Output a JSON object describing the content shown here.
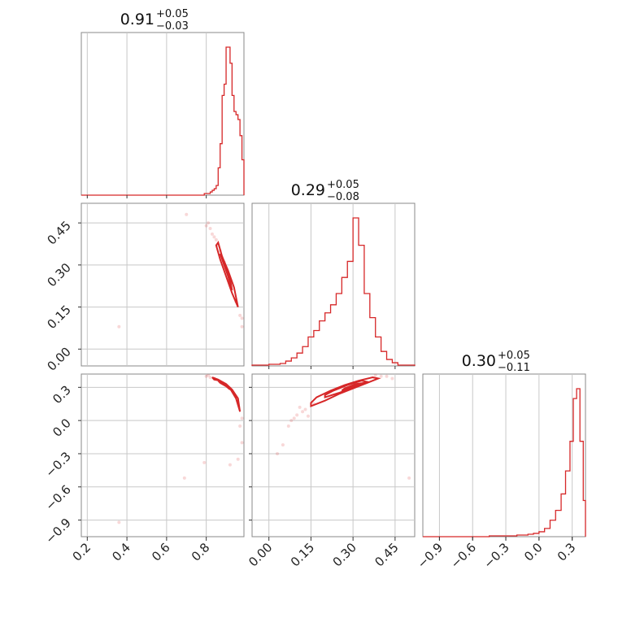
{
  "chart_data": {
    "type": "corner",
    "color": "#d62728",
    "title": "",
    "parameters": [
      {
        "key": "p1",
        "range": [
          0.17,
          0.99
        ],
        "ticks": [
          0.2,
          0.4,
          0.6,
          0.8
        ],
        "tick_labels": [
          "0.2",
          "0.4",
          "0.6",
          "0.8"
        ],
        "title": {
          "median": "0.91",
          "upper": "+0.05",
          "lower": "−0.03"
        }
      },
      {
        "key": "p2",
        "range": [
          -0.06,
          0.52
        ],
        "ticks": [
          0.0,
          0.15,
          0.3,
          0.45
        ],
        "tick_labels": [
          "0.00",
          "0.15",
          "0.30",
          "0.45"
        ],
        "title": {
          "median": "0.29",
          "upper": "+0.05",
          "lower": "−0.08"
        }
      },
      {
        "key": "p3",
        "range": [
          -1.05,
          0.42
        ],
        "ticks": [
          -0.9,
          -0.6,
          -0.3,
          0.0,
          0.3
        ],
        "tick_labels": [
          "−0.9",
          "−0.6",
          "−0.3",
          "0.0",
          "0.3"
        ],
        "title": {
          "median": "0.30",
          "upper": "+0.05",
          "lower": "−0.11"
        }
      }
    ],
    "histograms": [
      {
        "param": "p1",
        "edges": [
          0.17,
          0.79,
          0.8,
          0.81,
          0.82,
          0.83,
          0.84,
          0.85,
          0.86,
          0.87,
          0.88,
          0.89,
          0.9,
          0.91,
          0.92,
          0.93,
          0.94,
          0.95,
          0.96,
          0.97,
          0.98,
          0.99
        ],
        "counts": [
          0,
          0.01,
          0.01,
          0.01,
          0.02,
          0.03,
          0.04,
          0.06,
          0.17,
          0.32,
          0.62,
          0.69,
          0.92,
          0.92,
          0.82,
          0.62,
          0.52,
          0.5,
          0.47,
          0.37,
          0.22
        ]
      },
      {
        "param": "p2",
        "edges": [
          -0.06,
          0.0,
          0.02,
          0.04,
          0.06,
          0.08,
          0.1,
          0.12,
          0.14,
          0.16,
          0.18,
          0.2,
          0.22,
          0.24,
          0.26,
          0.28,
          0.3,
          0.32,
          0.34,
          0.36,
          0.38,
          0.4,
          0.42,
          0.44,
          0.46,
          0.52
        ],
        "counts": [
          0.005,
          0.01,
          0.01,
          0.015,
          0.03,
          0.05,
          0.08,
          0.12,
          0.18,
          0.22,
          0.28,
          0.33,
          0.38,
          0.45,
          0.55,
          0.65,
          0.92,
          0.75,
          0.45,
          0.3,
          0.18,
          0.09,
          0.04,
          0.02,
          0.005
        ]
      },
      {
        "param": "p3",
        "edges": [
          -1.05,
          -0.45,
          -0.3,
          -0.2,
          -0.1,
          -0.05,
          0.0,
          0.05,
          0.1,
          0.15,
          0.2,
          0.24,
          0.28,
          0.31,
          0.34,
          0.37,
          0.4,
          0.42
        ],
        "counts": [
          0,
          0.005,
          0.005,
          0.01,
          0.015,
          0.02,
          0.03,
          0.05,
          0.1,
          0.16,
          0.26,
          0.4,
          0.58,
          0.84,
          0.9,
          0.58,
          0.22
        ]
      }
    ],
    "scatter_2d": [
      {
        "x": "p1",
        "y": "p2",
        "contours": [
          [
            [
              0.85,
              0.37
            ],
            [
              0.87,
              0.32
            ],
            [
              0.9,
              0.26
            ],
            [
              0.93,
              0.2
            ],
            [
              0.96,
              0.15
            ],
            [
              0.94,
              0.22
            ],
            [
              0.91,
              0.28
            ],
            [
              0.88,
              0.33
            ],
            [
              0.86,
              0.38
            ]
          ],
          [
            [
              0.87,
              0.34
            ],
            [
              0.89,
              0.3
            ],
            [
              0.91,
              0.26
            ],
            [
              0.93,
              0.21
            ],
            [
              0.92,
              0.25
            ],
            [
              0.9,
              0.29
            ],
            [
              0.88,
              0.33
            ]
          ]
        ],
        "points": [
          [
            0.8,
            0.44
          ],
          [
            0.82,
            0.43
          ],
          [
            0.84,
            0.4
          ],
          [
            0.86,
            0.37
          ],
          [
            0.83,
            0.41
          ],
          [
            0.85,
            0.39
          ],
          [
            0.89,
            0.31
          ],
          [
            0.92,
            0.24
          ],
          [
            0.95,
            0.17
          ],
          [
            0.97,
            0.12
          ],
          [
            0.98,
            0.08
          ],
          [
            0.98,
            0.11
          ],
          [
            0.81,
            0.45
          ],
          [
            0.87,
            0.35
          ],
          [
            0.7,
            0.48
          ],
          [
            0.36,
            0.08
          ]
        ]
      },
      {
        "x": "p1",
        "y": "p3",
        "contours": [
          [
            [
              0.83,
              0.39
            ],
            [
              0.86,
              0.37
            ],
            [
              0.89,
              0.34
            ],
            [
              0.92,
              0.29
            ],
            [
              0.95,
              0.2
            ],
            [
              0.97,
              0.08
            ],
            [
              0.96,
              0.2
            ],
            [
              0.93,
              0.28
            ],
            [
              0.9,
              0.33
            ],
            [
              0.87,
              0.36
            ],
            [
              0.84,
              0.37
            ]
          ],
          [
            [
              0.86,
              0.36
            ],
            [
              0.89,
              0.33
            ],
            [
              0.92,
              0.28
            ],
            [
              0.9,
              0.31
            ],
            [
              0.87,
              0.34
            ]
          ]
        ],
        "points": [
          [
            0.8,
            0.4
          ],
          [
            0.82,
            0.39
          ],
          [
            0.84,
            0.38
          ],
          [
            0.98,
            0.02
          ],
          [
            0.97,
            -0.05
          ],
          [
            0.98,
            -0.2
          ],
          [
            0.96,
            -0.35
          ],
          [
            0.92,
            -0.4
          ],
          [
            0.79,
            -0.38
          ],
          [
            0.69,
            -0.52
          ],
          [
            0.36,
            -0.92
          ],
          [
            0.81,
            0.41
          ]
        ]
      },
      {
        "x": "p2",
        "y": "p3",
        "contours": [
          [
            [
              0.15,
              0.13
            ],
            [
              0.2,
              0.18
            ],
            [
              0.25,
              0.24
            ],
            [
              0.3,
              0.29
            ],
            [
              0.35,
              0.34
            ],
            [
              0.39,
              0.38
            ],
            [
              0.37,
              0.39
            ],
            [
              0.32,
              0.36
            ],
            [
              0.27,
              0.32
            ],
            [
              0.22,
              0.27
            ],
            [
              0.17,
              0.21
            ],
            [
              0.15,
              0.16
            ]
          ],
          [
            [
              0.2,
              0.21
            ],
            [
              0.25,
              0.25
            ],
            [
              0.3,
              0.3
            ],
            [
              0.35,
              0.35
            ],
            [
              0.33,
              0.36
            ],
            [
              0.28,
              0.32
            ],
            [
              0.23,
              0.27
            ],
            [
              0.2,
              0.23
            ]
          ],
          [
            [
              0.26,
              0.27
            ],
            [
              0.3,
              0.31
            ],
            [
              0.34,
              0.34
            ],
            [
              0.31,
              0.33
            ],
            [
              0.27,
              0.29
            ]
          ]
        ],
        "points": [
          [
            0.12,
            0.08
          ],
          [
            0.1,
            0.05
          ],
          [
            0.09,
            0.02
          ],
          [
            0.08,
            0.0
          ],
          [
            0.13,
            0.1
          ],
          [
            0.11,
            0.12
          ],
          [
            0.16,
            0.15
          ],
          [
            0.42,
            0.4
          ],
          [
            0.44,
            0.38
          ],
          [
            0.4,
            0.4
          ],
          [
            0.38,
            0.41
          ],
          [
            0.07,
            -0.05
          ],
          [
            0.05,
            -0.22
          ],
          [
            0.03,
            -0.3
          ],
          [
            0.5,
            -0.52
          ],
          [
            0.14,
            0.04
          ]
        ]
      }
    ]
  }
}
